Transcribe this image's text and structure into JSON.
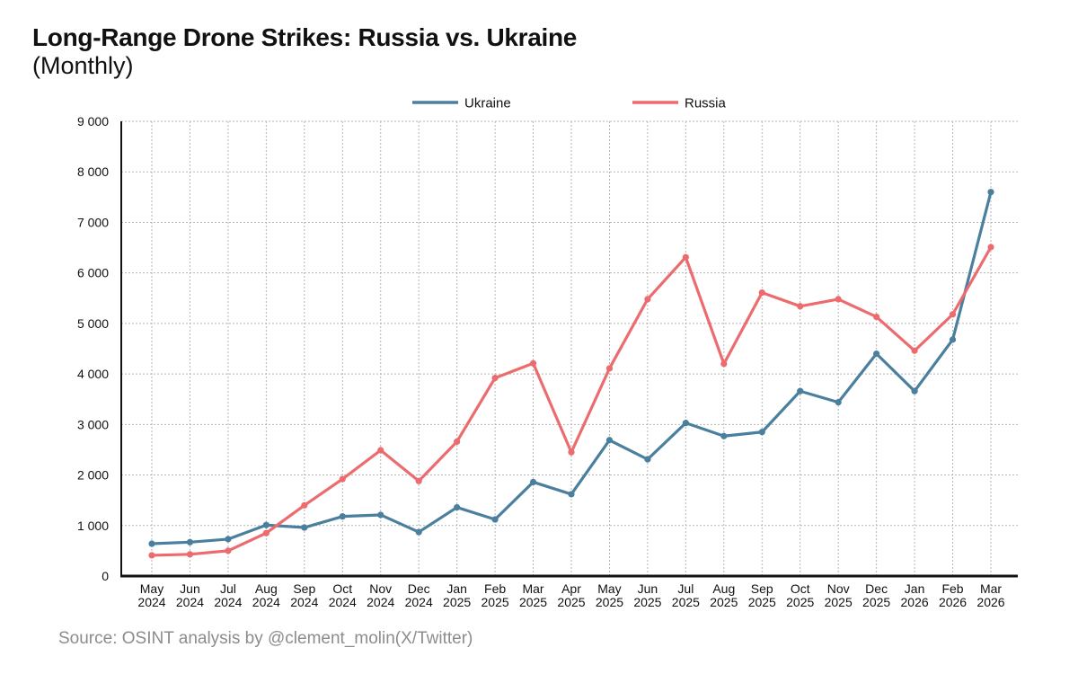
{
  "title": "Long-Range Drone Strikes: Russia vs. Ukraine",
  "subtitle": "(Monthly)",
  "source": "Source: OSINT analysis by @clement_molin(X/Twitter)",
  "chart_data": {
    "type": "line",
    "title": "Long-Range Drone Strikes: Russia vs. Ukraine",
    "subtitle": "(Monthly)",
    "xlabel": "",
    "ylabel": "",
    "ylim": [
      0,
      9000
    ],
    "yticks": [
      0,
      1000,
      2000,
      3000,
      4000,
      5000,
      6000,
      7000,
      8000,
      9000
    ],
    "ytick_labels": [
      "0",
      "1 000",
      "2 000",
      "3 000",
      "4 000",
      "5 000",
      "6 000",
      "7 000",
      "8 000",
      "9 000"
    ],
    "grid": true,
    "legend_position": "top-center",
    "categories": [
      [
        "May",
        "2024"
      ],
      [
        "Jun",
        "2024"
      ],
      [
        "Jul",
        "2024"
      ],
      [
        "Aug",
        "2024"
      ],
      [
        "Sep",
        "2024"
      ],
      [
        "Oct",
        "2024"
      ],
      [
        "Nov",
        "2024"
      ],
      [
        "Dec",
        "2024"
      ],
      [
        "Jan",
        "2025"
      ],
      [
        "Feb",
        "2025"
      ],
      [
        "Mar",
        "2025"
      ],
      [
        "Apr",
        "2025"
      ],
      [
        "May",
        "2025"
      ],
      [
        "Jun",
        "2025"
      ],
      [
        "Jul",
        "2025"
      ],
      [
        "Aug",
        "2025"
      ],
      [
        "Sep",
        "2025"
      ],
      [
        "Oct",
        "2025"
      ],
      [
        "Nov",
        "2025"
      ],
      [
        "Dec",
        "2025"
      ],
      [
        "Jan",
        "2026"
      ],
      [
        "Feb",
        "2026"
      ],
      [
        "Mar",
        "2026"
      ]
    ],
    "series": [
      {
        "name": "Ukraine",
        "color": "#4a7f9e",
        "values": [
          640,
          670,
          730,
          1010,
          960,
          1180,
          1210,
          870,
          1360,
          1120,
          1860,
          1620,
          2690,
          2310,
          3030,
          2770,
          2850,
          3660,
          3440,
          4400,
          3660,
          4680,
          7600
        ]
      },
      {
        "name": "Russia",
        "color": "#ec6b6e",
        "values": [
          410,
          430,
          500,
          850,
          1400,
          1920,
          2490,
          1880,
          2660,
          3920,
          4210,
          2450,
          4110,
          5480,
          6310,
          4200,
          5610,
          5340,
          5480,
          5130,
          4460,
          5180,
          6510
        ]
      }
    ]
  }
}
